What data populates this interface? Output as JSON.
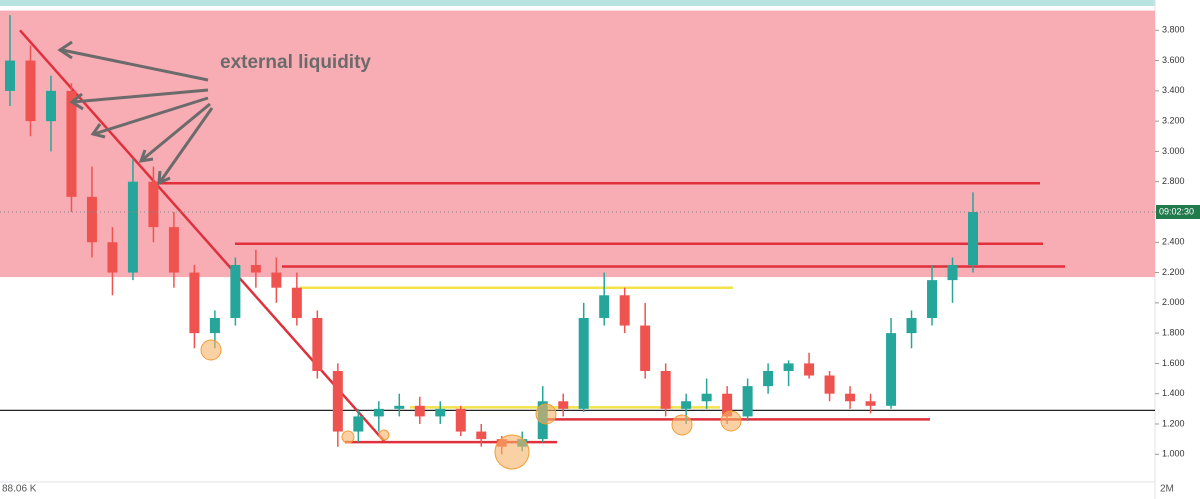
{
  "chart_data": {
    "type": "candlestick",
    "annotation": "external liquidity",
    "up_color": "#26a69a",
    "down_color": "#ef5350",
    "ylim": [
      0.83,
      4.0
    ],
    "yticks": [
      {
        "value": 1.0,
        "label": "1.000"
      },
      {
        "value": 1.2,
        "label": "1.200"
      },
      {
        "value": 1.4,
        "label": "1.400"
      },
      {
        "value": 1.6,
        "label": "1.600"
      },
      {
        "value": 1.8,
        "label": "1.800"
      },
      {
        "value": 2.0,
        "label": "2.000"
      },
      {
        "value": 2.2,
        "label": "2.200"
      },
      {
        "value": 2.4,
        "label": "2.400"
      },
      {
        "value": 2.6,
        "label": "2.600"
      },
      {
        "value": 2.8,
        "label": "2.800"
      },
      {
        "value": 3.0,
        "label": "3.000"
      },
      {
        "value": 3.2,
        "label": "3.200"
      },
      {
        "value": 3.4,
        "label": "3.400"
      },
      {
        "value": 3.6,
        "label": "3.600"
      },
      {
        "value": 3.8,
        "label": "3.800"
      }
    ],
    "zone": {
      "range": [
        2.17,
        3.93
      ],
      "color": "#f8a9b0"
    },
    "trendline": {
      "values": [
        3.8,
        1.08
      ],
      "color": "#e0303c"
    },
    "levels": [
      {
        "value": 2.79,
        "color": "#e0303c"
      },
      {
        "value": 2.39,
        "color": "#e0303c"
      },
      {
        "value": 2.24,
        "color": "#e0303c"
      },
      {
        "value": 2.1,
        "color": "#f2e34a"
      },
      {
        "value": 1.31,
        "color": "#f2e34a"
      },
      {
        "value": 1.29,
        "color": "#222222"
      },
      {
        "value": 1.23,
        "color": "#e0303c"
      },
      {
        "value": 1.08,
        "color": "#e0303c"
      }
    ],
    "price_label": {
      "value": 2.6,
      "label": "09:02:30"
    },
    "volume_label": "88.06 K",
    "volume_axis_label": "2M",
    "candles": {
      "open": [
        3.4,
        3.6,
        3.2,
        3.4,
        2.7,
        2.4,
        2.2,
        2.8,
        2.5,
        2.2,
        1.8,
        1.9,
        2.25,
        2.2,
        2.1,
        1.9,
        1.55,
        1.15,
        1.25,
        1.3,
        1.32,
        1.25,
        1.3,
        1.15,
        1.1,
        1.05,
        1.1,
        1.35,
        1.3,
        1.9,
        2.05,
        1.85,
        1.55,
        1.3,
        1.35,
        1.4,
        1.25,
        1.45,
        1.55,
        1.6,
        1.52,
        1.4,
        1.35,
        1.32,
        1.8,
        1.9,
        2.15,
        2.25
      ],
      "high": [
        3.9,
        3.7,
        3.5,
        3.45,
        2.9,
        2.5,
        2.95,
        2.9,
        2.6,
        2.25,
        1.95,
        2.3,
        2.35,
        2.3,
        2.2,
        1.95,
        1.6,
        1.3,
        1.35,
        1.4,
        1.38,
        1.35,
        1.32,
        1.2,
        1.12,
        1.15,
        1.45,
        1.4,
        2.0,
        2.2,
        2.1,
        2.0,
        1.6,
        1.4,
        1.5,
        1.45,
        1.5,
        1.6,
        1.62,
        1.67,
        1.55,
        1.45,
        1.4,
        1.9,
        1.95,
        2.25,
        2.3,
        2.73
      ],
      "low": [
        3.3,
        3.1,
        3.0,
        2.6,
        2.3,
        2.05,
        2.15,
        2.4,
        2.1,
        1.7,
        1.7,
        1.85,
        2.1,
        2.0,
        1.85,
        1.5,
        1.05,
        1.08,
        1.15,
        1.25,
        1.2,
        1.2,
        1.12,
        1.05,
        1.0,
        1.02,
        1.08,
        1.25,
        1.28,
        1.85,
        1.8,
        1.5,
        1.25,
        1.2,
        1.3,
        1.2,
        1.22,
        1.4,
        1.45,
        1.5,
        1.35,
        1.3,
        1.27,
        1.3,
        1.7,
        1.85,
        2.0,
        2.2
      ],
      "close": [
        3.6,
        3.2,
        3.4,
        2.7,
        2.4,
        2.2,
        2.8,
        2.5,
        2.2,
        1.8,
        1.9,
        2.25,
        2.2,
        2.1,
        1.9,
        1.55,
        1.15,
        1.25,
        1.3,
        1.32,
        1.25,
        1.3,
        1.15,
        1.1,
        1.05,
        1.1,
        1.35,
        1.3,
        1.9,
        2.05,
        1.85,
        1.55,
        1.3,
        1.35,
        1.4,
        1.25,
        1.45,
        1.55,
        1.6,
        1.52,
        1.4,
        1.35,
        1.32,
        1.8,
        1.9,
        2.15,
        2.25,
        2.6
      ]
    }
  }
}
